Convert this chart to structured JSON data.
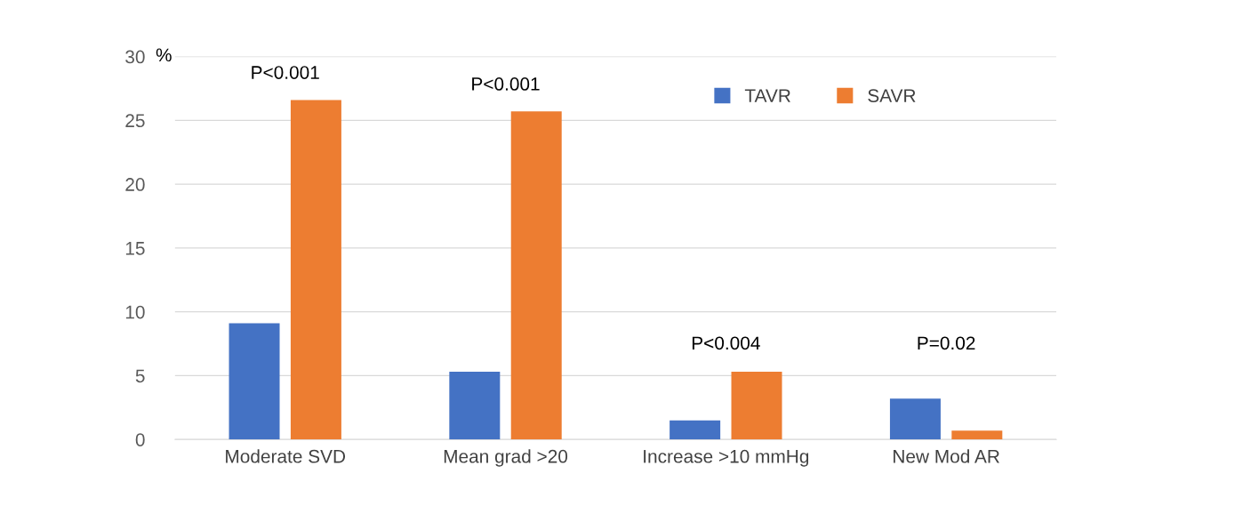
{
  "chart_data": {
    "type": "bar",
    "categories": [
      "Moderate SVD",
      "Mean grad >20",
      "Increase >10 mmHg",
      "New Mod AR"
    ],
    "series": [
      {
        "name": "TAVR",
        "color": "#4472c4",
        "values": [
          9.1,
          5.3,
          1.5,
          3.2
        ]
      },
      {
        "name": "SAVR",
        "color": "#ed7d31",
        "values": [
          26.6,
          25.7,
          5.3,
          0.7
        ]
      }
    ],
    "ylabel": "%",
    "ylim": [
      0,
      30
    ],
    "yticks": [
      0,
      5,
      10,
      15,
      20,
      25,
      30
    ],
    "grid": "y",
    "legend": "top right",
    "annotations": [
      "P<0.001",
      "P<0.001",
      "P<0.004",
      "P=0.02"
    ]
  }
}
